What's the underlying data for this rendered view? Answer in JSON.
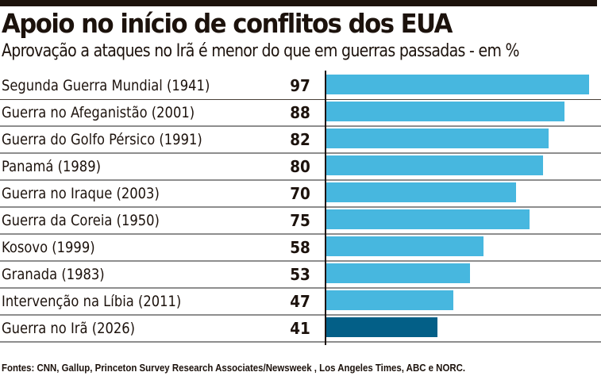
{
  "header": {
    "title": "Apoio no início de conflitos dos EUA",
    "subtitle": "Aprovação a ataques no Irã é menor do que em guerras passadas - em %"
  },
  "colors": {
    "bar": "#47b7df",
    "highlight_bar": "#035f87",
    "text": "#1c120c"
  },
  "chart_data": {
    "type": "bar",
    "orientation": "horizontal",
    "title": "Apoio no início de conflitos dos EUA",
    "subtitle": "Aprovação a ataques no Irã é menor do que em guerras passadas - em %",
    "xlabel": "",
    "ylabel": "",
    "xlim": [
      0,
      100
    ],
    "grid": false,
    "categories": [
      "Segunda Guerra Mundial (1941)",
      "Guerra no Afeganistão (2001)",
      "Guerra do Golfo Pérsico (1991)",
      "Panamá (1989)",
      "Guerra no Iraque (2003)",
      "Guerra da Coreia (1950)",
      "Kosovo (1999)",
      "Granada (1983)",
      "Intervenção na Líbia (2011)",
      "Guerra no Irã (2026)"
    ],
    "values": [
      97,
      88,
      82,
      80,
      70,
      75,
      58,
      53,
      47,
      41
    ],
    "value_labels": [
      "97",
      "88",
      "82",
      "80",
      "70",
      "75",
      "58",
      "53",
      "47",
      "41"
    ],
    "highlight": [
      "Guerra no Irã (2026)"
    ]
  },
  "footer": {
    "source": "Fontes: CNN, Gallup, Princeton Survey Research Associates/Newsweek , Los Angeles Times,  ABC e NORC."
  }
}
